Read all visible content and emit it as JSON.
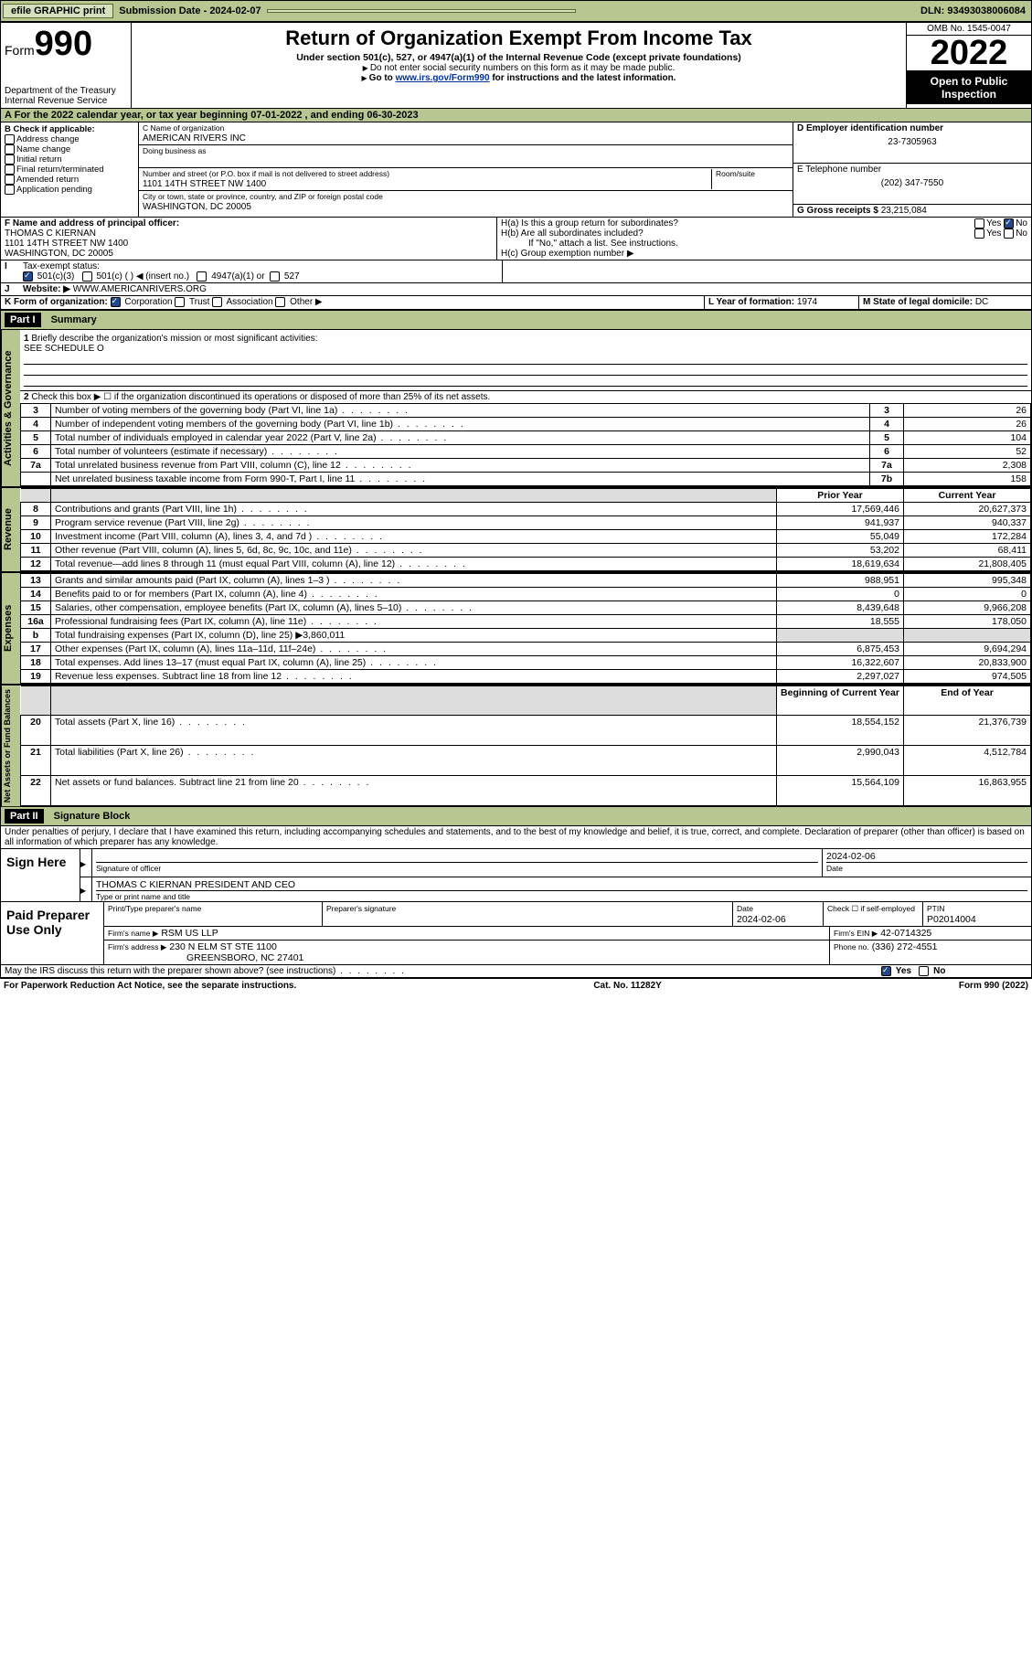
{
  "topbar": {
    "efile": "efile GRAPHIC print",
    "submission_label": "Submission Date - 2024-02-07",
    "dln": "DLN: 93493038006084"
  },
  "header": {
    "form_label": "Form",
    "form_number": "990",
    "dept": "Department of the Treasury",
    "irs": "Internal Revenue Service",
    "title": "Return of Organization Exempt From Income Tax",
    "subtitle": "Under section 501(c), 527, or 4947(a)(1) of the Internal Revenue Code (except private foundations)",
    "note1": "Do not enter social security numbers on this form as it may be made public.",
    "note2_pre": "Go to ",
    "note2_link": "www.irs.gov/Form990",
    "note2_post": " for instructions and the latest information.",
    "omb": "OMB No. 1545-0047",
    "year": "2022",
    "open": "Open to Public Inspection"
  },
  "A": {
    "text": "For the 2022 calendar year, or tax year beginning 07-01-2022   , and ending 06-30-2023"
  },
  "B": {
    "label": "B Check if applicable:",
    "opts": [
      "Address change",
      "Name change",
      "Initial return",
      "Final return/terminated",
      "Amended return",
      "Application pending"
    ]
  },
  "C": {
    "name_label": "C Name of organization",
    "name": "AMERICAN RIVERS INC",
    "dba_label": "Doing business as",
    "addr_label": "Number and street (or P.O. box if mail is not delivered to street address)",
    "room_label": "Room/suite",
    "addr": "1101 14TH STREET NW 1400",
    "city_label": "City or town, state or province, country, and ZIP or foreign postal code",
    "city": "WASHINGTON, DC  20005"
  },
  "D": {
    "label": "D Employer identification number",
    "value": "23-7305963"
  },
  "E": {
    "label": "E Telephone number",
    "value": "(202) 347-7550"
  },
  "G": {
    "label": "G Gross receipts $",
    "value": "23,215,084"
  },
  "F": {
    "label": "F  Name and address of principal officer:",
    "name": "THOMAS C KIERNAN",
    "addr1": "1101 14TH STREET NW 1400",
    "addr2": "WASHINGTON, DC  20005"
  },
  "H": {
    "a": "H(a)  Is this a group return for subordinates?",
    "b": "H(b)  Are all subordinates included?",
    "b_note": "If \"No,\" attach a list. See instructions.",
    "c": "H(c)  Group exemption number ▶",
    "yes": "Yes",
    "no": "No"
  },
  "I": {
    "label": "Tax-exempt status:",
    "opts": [
      "501(c)(3)",
      "501(c) (  ) ◀ (insert no.)",
      "4947(a)(1) or",
      "527"
    ]
  },
  "J": {
    "label": "Website: ▶",
    "value": "WWW.AMERICANRIVERS.ORG"
  },
  "K": {
    "label": "K Form of organization:",
    "opts": [
      "Corporation",
      "Trust",
      "Association",
      "Other ▶"
    ]
  },
  "L": {
    "label": "L Year of formation:",
    "value": "1974"
  },
  "M": {
    "label": "M State of legal domicile:",
    "value": "DC"
  },
  "partI": {
    "header": "Part I",
    "title": "Summary",
    "line1_label": "Briefly describe the organization's mission or most significant activities:",
    "line1_value": "SEE SCHEDULE O",
    "line2": "Check this box ▶ ☐  if the organization discontinued its operations or disposed of more than 25% of its net assets.",
    "tabs": {
      "gov": "Activities & Governance",
      "rev": "Revenue",
      "exp": "Expenses",
      "net": "Net Assets or Fund Balances"
    },
    "col_prior": "Prior Year",
    "col_current": "Current Year",
    "col_boy": "Beginning of Current Year",
    "col_eoy": "End of Year",
    "rows_gov": [
      {
        "n": "3",
        "t": "Number of voting members of the governing body (Part VI, line 1a)",
        "k": "3",
        "v": "26"
      },
      {
        "n": "4",
        "t": "Number of independent voting members of the governing body (Part VI, line 1b)",
        "k": "4",
        "v": "26"
      },
      {
        "n": "5",
        "t": "Total number of individuals employed in calendar year 2022 (Part V, line 2a)",
        "k": "5",
        "v": "104"
      },
      {
        "n": "6",
        "t": "Total number of volunteers (estimate if necessary)",
        "k": "6",
        "v": "52"
      },
      {
        "n": "7a",
        "t": "Total unrelated business revenue from Part VIII, column (C), line 12",
        "k": "7a",
        "v": "2,308"
      },
      {
        "n": "",
        "t": "Net unrelated business taxable income from Form 990-T, Part I, line 11",
        "k": "7b",
        "v": "158"
      }
    ],
    "rows_rev": [
      {
        "n": "8",
        "t": "Contributions and grants (Part VIII, line 1h)",
        "p": "17,569,446",
        "c": "20,627,373"
      },
      {
        "n": "9",
        "t": "Program service revenue (Part VIII, line 2g)",
        "p": "941,937",
        "c": "940,337"
      },
      {
        "n": "10",
        "t": "Investment income (Part VIII, column (A), lines 3, 4, and 7d )",
        "p": "55,049",
        "c": "172,284"
      },
      {
        "n": "11",
        "t": "Other revenue (Part VIII, column (A), lines 5, 6d, 8c, 9c, 10c, and 11e)",
        "p": "53,202",
        "c": "68,411"
      },
      {
        "n": "12",
        "t": "Total revenue—add lines 8 through 11 (must equal Part VIII, column (A), line 12)",
        "p": "18,619,634",
        "c": "21,808,405"
      }
    ],
    "rows_exp": [
      {
        "n": "13",
        "t": "Grants and similar amounts paid (Part IX, column (A), lines 1–3 )",
        "p": "988,951",
        "c": "995,348"
      },
      {
        "n": "14",
        "t": "Benefits paid to or for members (Part IX, column (A), line 4)",
        "p": "0",
        "c": "0"
      },
      {
        "n": "15",
        "t": "Salaries, other compensation, employee benefits (Part IX, column (A), lines 5–10)",
        "p": "8,439,648",
        "c": "9,966,208"
      },
      {
        "n": "16a",
        "t": "Professional fundraising fees (Part IX, column (A), line 11e)",
        "p": "18,555",
        "c": "178,050"
      },
      {
        "n": "b",
        "t": "Total fundraising expenses (Part IX, column (D), line 25) ▶3,860,011",
        "p": "",
        "c": "",
        "shade": true
      },
      {
        "n": "17",
        "t": "Other expenses (Part IX, column (A), lines 11a–11d, 11f–24e)",
        "p": "6,875,453",
        "c": "9,694,294"
      },
      {
        "n": "18",
        "t": "Total expenses. Add lines 13–17 (must equal Part IX, column (A), line 25)",
        "p": "16,322,607",
        "c": "20,833,900"
      },
      {
        "n": "19",
        "t": "Revenue less expenses. Subtract line 18 from line 12",
        "p": "2,297,027",
        "c": "974,505"
      }
    ],
    "rows_net": [
      {
        "n": "20",
        "t": "Total assets (Part X, line 16)",
        "p": "18,554,152",
        "c": "21,376,739"
      },
      {
        "n": "21",
        "t": "Total liabilities (Part X, line 26)",
        "p": "2,990,043",
        "c": "4,512,784"
      },
      {
        "n": "22",
        "t": "Net assets or fund balances. Subtract line 21 from line 20",
        "p": "15,564,109",
        "c": "16,863,955"
      }
    ]
  },
  "partII": {
    "header": "Part II",
    "title": "Signature Block",
    "jurat": "Under penalties of perjury, I declare that I have examined this return, including accompanying schedules and statements, and to the best of my knowledge and belief, it is true, correct, and complete. Declaration of preparer (other than officer) is based on all information of which preparer has any knowledge.",
    "sign_here": "Sign Here",
    "sig_officer": "Signature of officer",
    "date": "Date",
    "date_val": "2024-02-06",
    "officer_name": "THOMAS C KIERNAN  PRESIDENT AND CEO",
    "type_name": "Type or print name and title",
    "paid": "Paid Preparer Use Only",
    "prep_name_label": "Print/Type preparer's name",
    "prep_sig_label": "Preparer's signature",
    "prep_date": "2024-02-06",
    "check_if": "Check ☐ if self-employed",
    "ptin_label": "PTIN",
    "ptin": "P02014004",
    "firm_name_label": "Firm's name    ▶",
    "firm_name": "RSM US LLP",
    "firm_ein_label": "Firm's EIN ▶",
    "firm_ein": "42-0714325",
    "firm_addr_label": "Firm's address ▶",
    "firm_addr1": "230 N ELM ST STE 1100",
    "firm_addr2": "GREENSBORO, NC  27401",
    "phone_label": "Phone no.",
    "phone": "(336) 272-4551",
    "discuss": "May the IRS discuss this return with the preparer shown above? (see instructions)"
  },
  "footer": {
    "left": "For Paperwork Reduction Act Notice, see the separate instructions.",
    "mid": "Cat. No. 11282Y",
    "right": "Form 990 (2022)"
  }
}
